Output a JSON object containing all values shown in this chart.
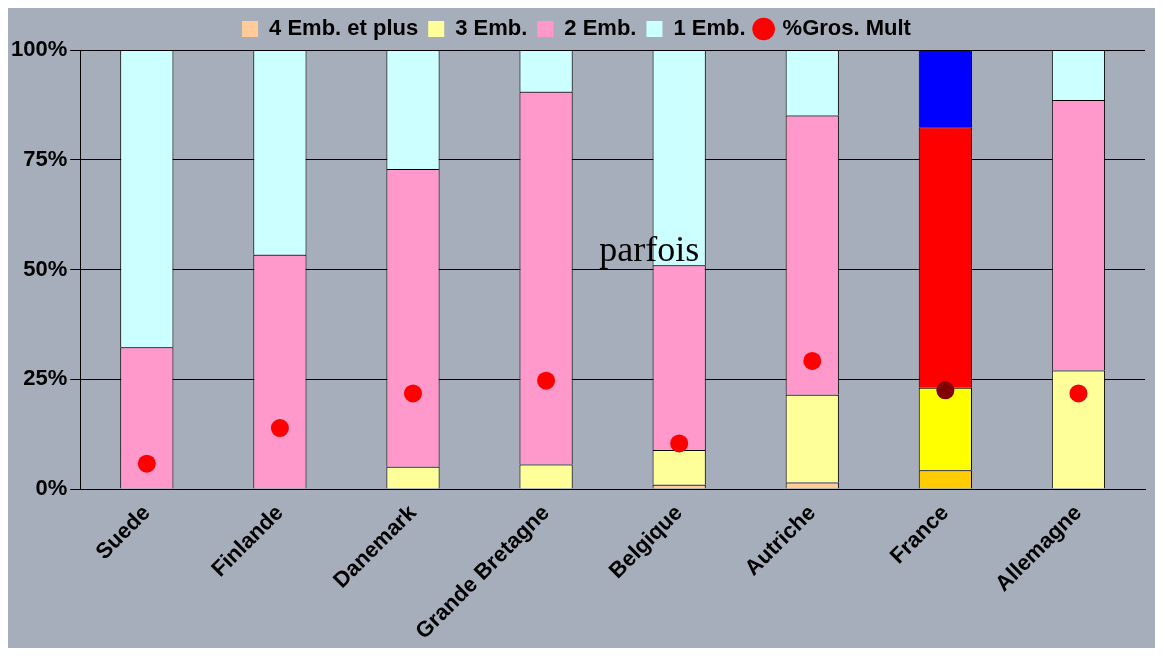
{
  "chart_data": {
    "type": "bar",
    "stacked": true,
    "categories": [
      "Suede",
      "Finlande",
      "Danemark",
      "Grande Bretagne",
      "Belgique",
      "Autriche",
      "France",
      "Allemagne"
    ],
    "series": [
      {
        "name": "4 Emb. et plus",
        "color": "#ffcc99",
        "colors": [
          "#ffcc99",
          "#ffcc99",
          "#ffcc99",
          "#ffcc99",
          "#ffcc99",
          "#ffcc99",
          "#ffcc00",
          "#ffcc99"
        ],
        "values": [
          0,
          0,
          0,
          0,
          1,
          1.5,
          4.3,
          0
        ]
      },
      {
        "name": "3 Emb.",
        "color": "#ffff99",
        "colors": [
          "#ffff99",
          "#ffff99",
          "#ffff99",
          "#ffff99",
          "#ffff99",
          "#ffff99",
          "#ffff00",
          "#ffff99"
        ],
        "values": [
          0,
          null,
          5.1,
          5.6,
          7.9,
          20,
          18.8,
          27
        ]
      },
      {
        "name": "2 Emb.",
        "color": "#ff99cc",
        "colors": [
          "#ff99cc",
          "#ff99cc",
          "#ff99cc",
          "#ff99cc",
          "#ff99cc",
          "#ff99cc",
          "#ff0000",
          "#ff99cc"
        ],
        "values": [
          32.3,
          53.4,
          67.8,
          84.9,
          42.1,
          63.6,
          59.3,
          61.6
        ]
      },
      {
        "name": "1 Emb.",
        "color": "#ccffff",
        "colors": [
          "#ccffff",
          "#ccffff",
          "#ccffff",
          "#ccffff",
          "#ccffff",
          "#ccffff",
          "#0000ff",
          "#ccffff"
        ],
        "values": [
          67.7,
          46.6,
          27.1,
          9.5,
          49,
          14.9,
          17.6,
          11.4
        ]
      },
      {
        "name": "%Gros. Mult",
        "type": "scatter",
        "marker": "circle",
        "color": "#ff0000",
        "colors": [
          "#ff0000",
          "#ff0000",
          "#ff0000",
          "#ff0000",
          "#ff0000",
          "#ff0000",
          "#800000",
          "#ff0000"
        ],
        "x": [
          "Suede",
          "Finlande",
          "Danemark",
          "Grande Bretagne",
          "Belgique",
          "Autriche",
          "France",
          "Allemagne"
        ],
        "values": [
          5.8,
          13.9,
          21.8,
          24.7,
          10.4,
          29.2,
          22.5,
          21.8
        ]
      }
    ],
    "ylim": [
      0,
      100
    ],
    "yticks": [
      {
        "value": 0,
        "label": "0%"
      },
      {
        "value": 25,
        "label": "25%"
      },
      {
        "value": 50,
        "label": "50%"
      },
      {
        "value": 75,
        "label": "75%"
      },
      {
        "value": 100,
        "label": "100%"
      }
    ],
    "grid": "y",
    "legend": "top",
    "annotations": [
      {
        "text": "parfois",
        "x": "Belgique",
        "y": 50
      }
    ]
  }
}
